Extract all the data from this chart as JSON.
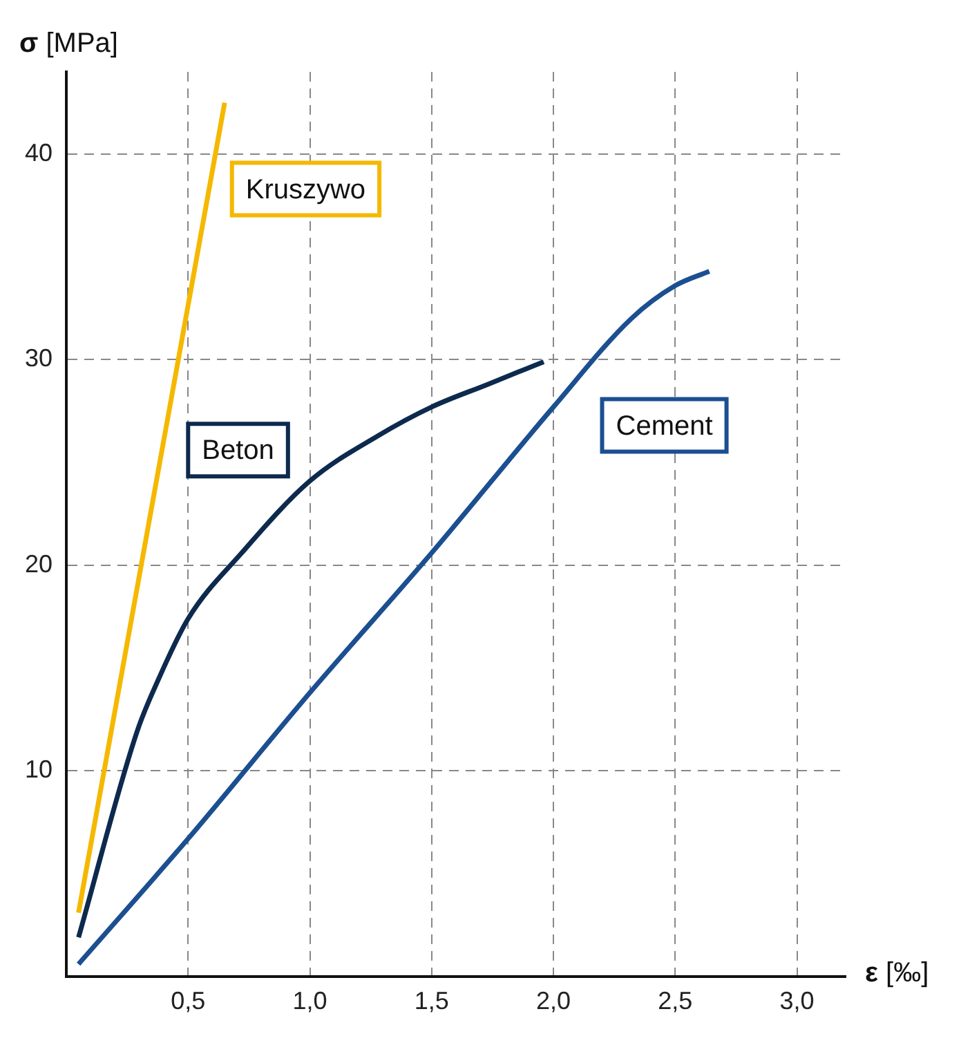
{
  "chart_data": {
    "type": "line",
    "xlabel": "ε [‰]",
    "ylabel": "σ [MPa]",
    "xlim": [
      0,
      3.2
    ],
    "ylim": [
      0,
      44
    ],
    "xticks": [
      {
        "value": 0.5,
        "label": "0,5"
      },
      {
        "value": 1.0,
        "label": "1,0"
      },
      {
        "value": 1.5,
        "label": "1,5"
      },
      {
        "value": 2.0,
        "label": "2,0"
      },
      {
        "value": 2.5,
        "label": "2,5"
      },
      {
        "value": 3.0,
        "label": "3,0"
      }
    ],
    "yticks": [
      10,
      20,
      30,
      40
    ],
    "grid": true,
    "legend": false,
    "marker": "none",
    "line_style": "solid",
    "series": [
      {
        "name": "Kruszywo",
        "color": "#f5b800",
        "x": [
          0.05,
          0.65
        ],
        "values": [
          3.1,
          42.5
        ]
      },
      {
        "name": "Beton",
        "color": "#0d2a4e",
        "x": [
          0.05,
          0.29,
          0.38,
          0.5,
          0.72,
          1.0,
          1.28,
          1.5,
          1.73,
          1.96
        ],
        "values": [
          1.9,
          11.9,
          14.5,
          17.4,
          20.6,
          24.1,
          26.3,
          27.7,
          28.8,
          29.9
        ]
      },
      {
        "name": "Cement",
        "color": "#1c4f91",
        "x": [
          0.05,
          0.5,
          1.0,
          1.5,
          2.0,
          2.32,
          2.5,
          2.64
        ],
        "values": [
          0.6,
          6.7,
          13.8,
          20.6,
          27.7,
          32.0,
          33.6,
          34.3
        ]
      }
    ]
  }
}
